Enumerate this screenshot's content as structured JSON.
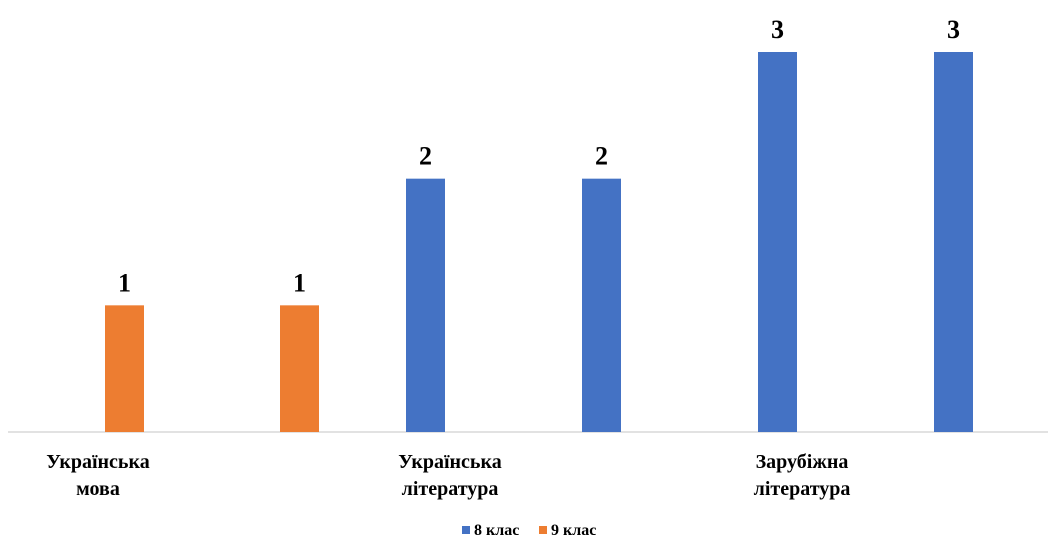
{
  "chart_data": {
    "type": "bar",
    "categories": [
      [
        "Українська",
        "мова"
      ],
      [
        "Українська",
        "література"
      ],
      [
        "Зарубіжна",
        "література"
      ]
    ],
    "series": [
      {
        "name": "8 клас",
        "color": "#4472C4",
        "values": [
          0,
          2,
          3
        ]
      },
      {
        "name": "9 клас",
        "color": "#ED7D31",
        "values": [
          1,
          1,
          0
        ]
      }
    ],
    "bars": [
      {
        "series": "9 клас",
        "value": 1,
        "label": "1"
      },
      {
        "series": "9 клас",
        "value": 1,
        "label": "1"
      },
      {
        "series": "8 клас",
        "value": 2,
        "label": "2"
      },
      {
        "series": "8 клас",
        "value": 2,
        "label": "2"
      },
      {
        "series": "8 клас",
        "value": 3,
        "label": "3"
      },
      {
        "series": "8 клас",
        "value": 3,
        "label": "3"
      }
    ],
    "ylim": [
      0,
      3
    ],
    "grid": false,
    "legend_position": "bottom",
    "title": "",
    "xlabel": "",
    "ylabel": ""
  }
}
